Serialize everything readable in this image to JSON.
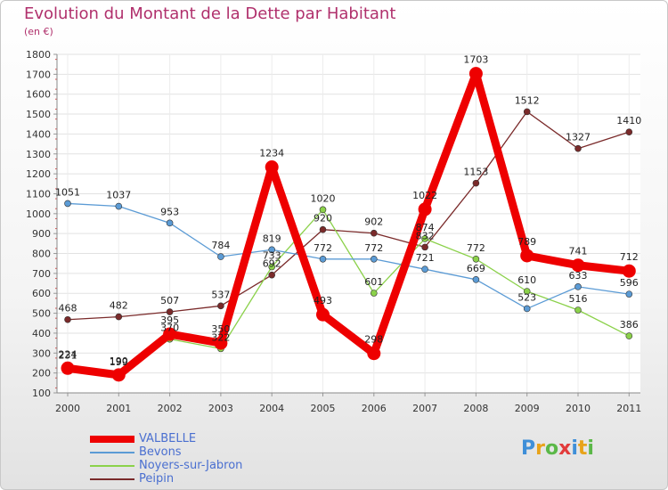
{
  "title": "Evolution du Montant de la Dette par Habitant",
  "unit": "(en €)",
  "logo_text": "Proxiti",
  "chart_data": {
    "type": "line",
    "title": "Evolution du Montant de la Dette par Habitant",
    "ylabel": "(en €)",
    "xlabel": "",
    "ylim": [
      100,
      1800
    ],
    "yticks": [
      100,
      200,
      300,
      400,
      500,
      600,
      700,
      800,
      900,
      1000,
      1100,
      1200,
      1300,
      1400,
      1500,
      1600,
      1700,
      1800
    ],
    "categories": [
      "2000",
      "2001",
      "2002",
      "2003",
      "2004",
      "2005",
      "2006",
      "2007",
      "2008",
      "2009",
      "2010",
      "2011"
    ],
    "grid": true,
    "legend": "bottom-left",
    "series": [
      {
        "name": "VALBELLE",
        "color": "#ee0000",
        "values": [
          224,
          190,
          395,
          350,
          1234,
          493,
          298,
          1022,
          1703,
          789,
          741,
          712
        ]
      },
      {
        "name": "Bevons",
        "color": "#5b9bd5",
        "values": [
          1051,
          1037,
          953,
          784,
          819,
          772,
          772,
          721,
          669,
          523,
          633,
          596
        ]
      },
      {
        "name": "Noyers-sur-Jabron",
        "color": "#8bd14a",
        "values": [
          231,
          199,
          370,
          322,
          733,
          1020,
          601,
          874,
          772,
          610,
          516,
          386
        ]
      },
      {
        "name": "Peipin",
        "color": "#7a2a2a",
        "values": [
          468,
          482,
          507,
          537,
          692,
          920,
          902,
          832,
          1153,
          1512,
          1327,
          1410
        ]
      }
    ]
  }
}
